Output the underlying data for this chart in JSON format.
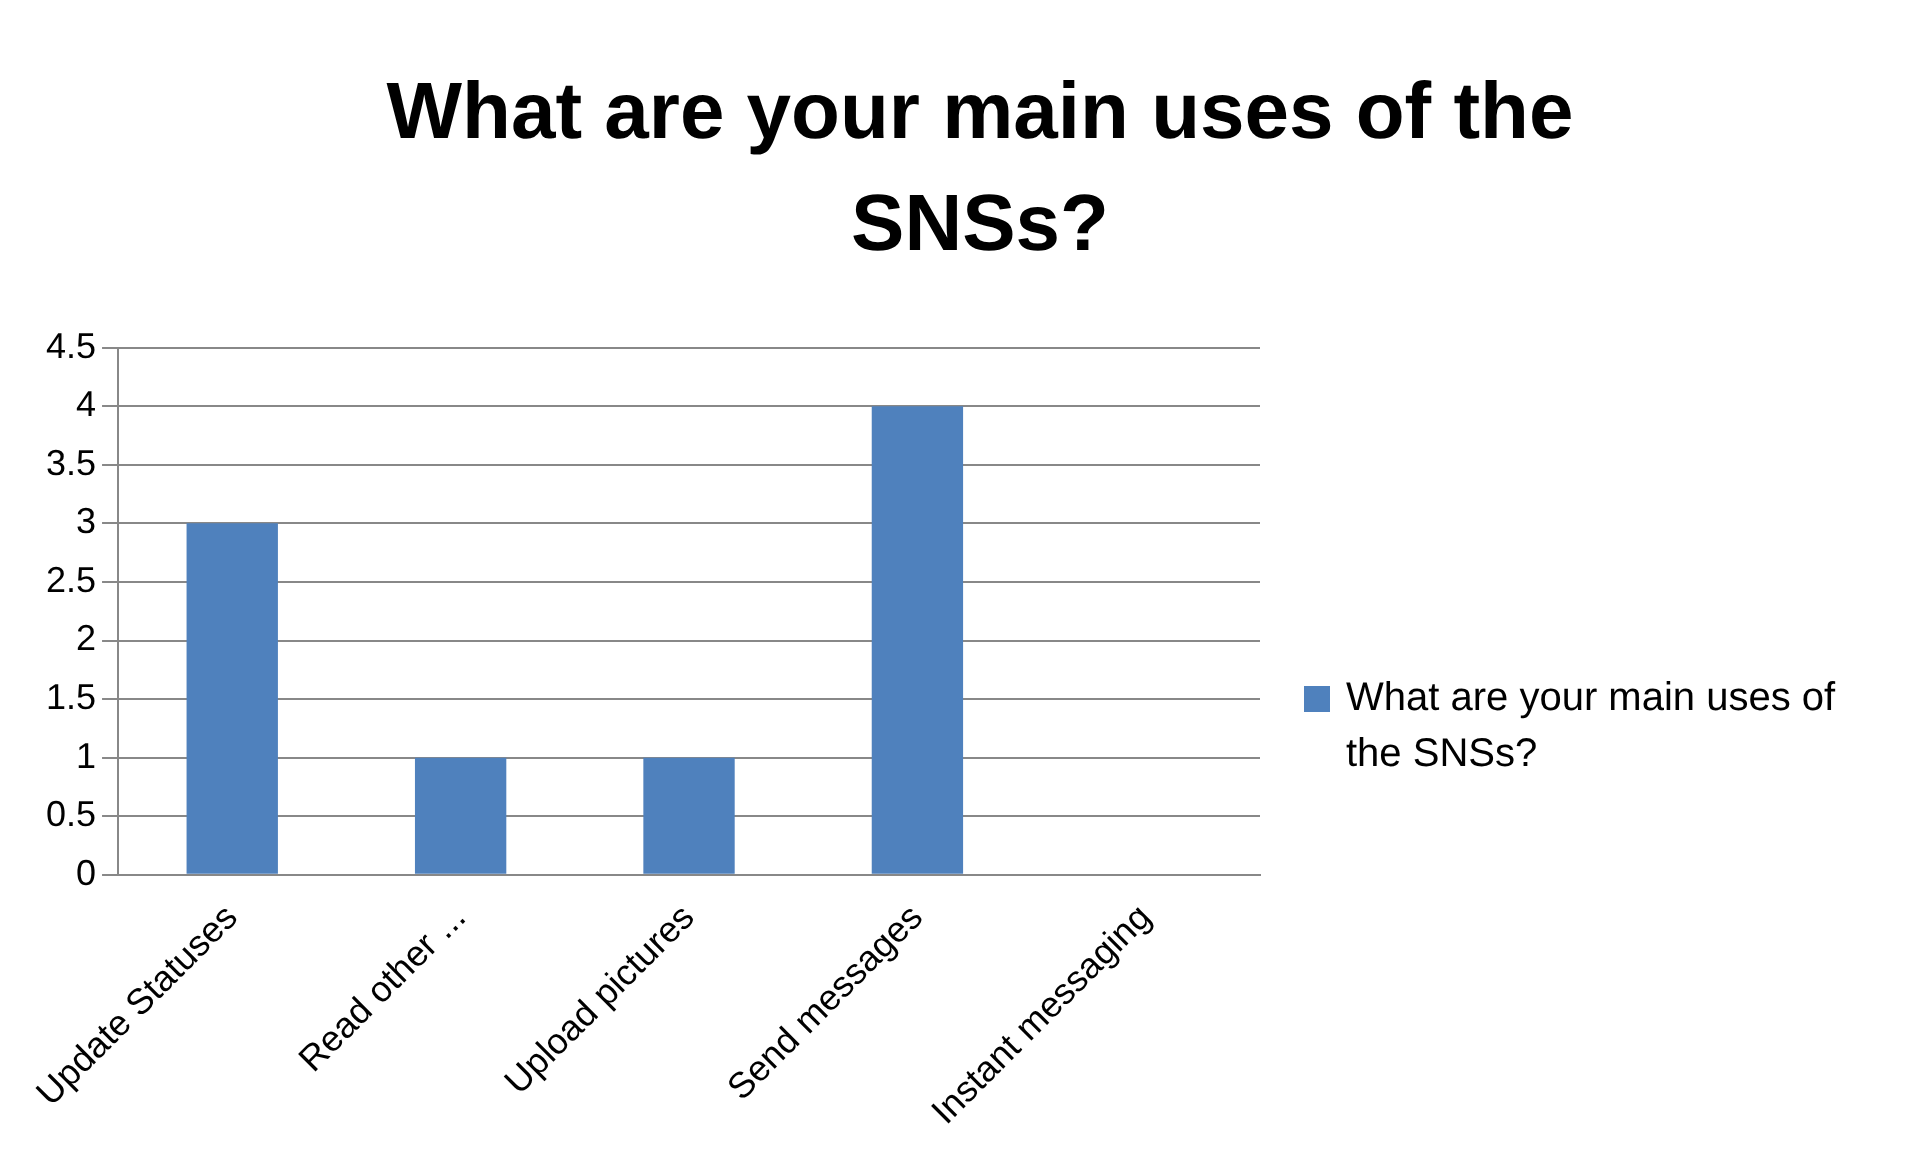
{
  "chart_data": {
    "type": "bar",
    "title": "What are your main uses of the SNSs?",
    "categories": [
      "Update Statuses",
      "Read other ...",
      "Upload pictures",
      "Send messages",
      "Instant messaging"
    ],
    "series": [
      {
        "name": "What are your main uses of the SNSs?",
        "color": "#4f81bd",
        "values": [
          3,
          1,
          1,
          4,
          0
        ]
      }
    ],
    "ylim": [
      0,
      4.5
    ],
    "yticks": [
      0,
      0.5,
      1,
      1.5,
      2,
      2.5,
      3,
      3.5,
      4,
      4.5
    ],
    "grid": "y",
    "legend": "right"
  }
}
